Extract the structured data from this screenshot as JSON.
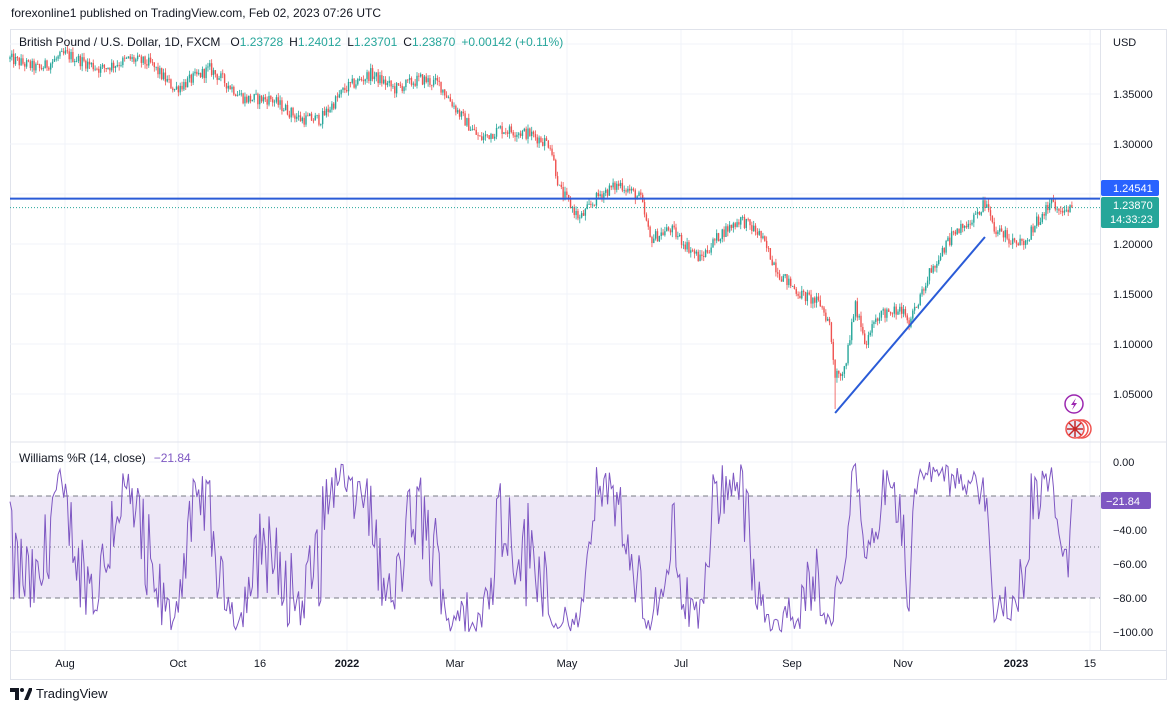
{
  "header": {
    "published": "forexonline1 published on TradingView.com, Feb 02, 2023 07:26 UTC"
  },
  "legend": {
    "symbol": "British Pound / U.S. Dollar, 1D, FXCM",
    "o_label": "O",
    "o": "1.23728",
    "h_label": "H",
    "h": "1.24012",
    "l_label": "L",
    "l": "1.23701",
    "c_label": "C",
    "c": "1.23870",
    "change": "+0.00142 (+0.11%)"
  },
  "indicator": {
    "title": "Williams %R (14, close)",
    "value": "−21.84"
  },
  "price_axis": {
    "currency": "USD",
    "ticks": [
      "1.35000",
      "1.30000",
      "1.20000",
      "1.15000",
      "1.10000",
      "1.05000"
    ],
    "line_label": "1.24541",
    "last_price": "1.23870",
    "countdown": "14:33:23"
  },
  "wr_axis": {
    "ticks": [
      "0.00",
      "−40.00",
      "−60.00",
      "−80.00",
      "−100.00"
    ],
    "last": "−21.84"
  },
  "time_axis": [
    "Aug",
    "Oct",
    "16",
    "2022",
    "Mar",
    "May",
    "Jul",
    "Sep",
    "Nov",
    "2023",
    "15"
  ],
  "footer": {
    "brand": "TradingView"
  },
  "colors": {
    "up": "#26a69a",
    "down": "#ef5350",
    "line": "#2a5bd7",
    "wr": "#7e57c2",
    "band": "#ede7f6"
  },
  "chart_data": {
    "type": "candlestick",
    "title": "British Pound / U.S. Dollar, 1D, FXCM",
    "ylim": [
      1.01,
      1.415
    ],
    "close_path": [
      [
        "2021-07-02",
        1.385
      ],
      [
        "2021-07-18",
        1.375
      ],
      [
        "2021-08-01",
        1.39
      ],
      [
        "2021-08-20",
        1.375
      ],
      [
        "2021-09-05",
        1.385
      ],
      [
        "2021-09-16",
        1.38
      ],
      [
        "2021-09-29",
        1.355
      ],
      [
        "2021-10-18",
        1.375
      ],
      [
        "2021-11-06",
        1.345
      ],
      [
        "2021-11-20",
        1.345
      ],
      [
        "2021-12-06",
        1.325
      ],
      [
        "2021-12-17",
        1.325
      ],
      [
        "2021-12-30",
        1.355
      ],
      [
        "2022-01-13",
        1.37
      ],
      [
        "2022-01-26",
        1.355
      ],
      [
        "2022-02-09",
        1.365
      ],
      [
        "2022-02-19",
        1.36
      ],
      [
        "2022-03-02",
        1.33
      ],
      [
        "2022-03-13",
        1.305
      ],
      [
        "2022-03-24",
        1.315
      ],
      [
        "2022-04-09",
        1.31
      ],
      [
        "2022-04-20",
        1.3
      ],
      [
        "2022-04-25",
        1.255
      ],
      [
        "2022-05-06",
        1.225
      ],
      [
        "2022-05-17",
        1.25
      ],
      [
        "2022-05-28",
        1.26
      ],
      [
        "2022-06-08",
        1.245
      ],
      [
        "2022-06-13",
        1.205
      ],
      [
        "2022-06-24",
        1.215
      ],
      [
        "2022-07-10",
        1.185
      ],
      [
        "2022-07-21",
        1.21
      ],
      [
        "2022-08-01",
        1.225
      ],
      [
        "2022-08-11",
        1.21
      ],
      [
        "2022-08-22",
        1.17
      ],
      [
        "2022-09-02",
        1.15
      ],
      [
        "2022-09-13",
        1.14
      ],
      [
        "2022-09-18",
        1.12
      ],
      [
        "2022-09-21",
        1.07
      ],
      [
        "2022-09-26",
        1.075
      ],
      [
        "2022-10-02",
        1.14
      ],
      [
        "2022-10-07",
        1.1
      ],
      [
        "2022-10-15",
        1.13
      ],
      [
        "2022-10-26",
        1.135
      ],
      [
        "2022-10-31",
        1.12
      ],
      [
        "2022-11-11",
        1.17
      ],
      [
        "2022-11-22",
        1.205
      ],
      [
        "2022-12-03",
        1.225
      ],
      [
        "2022-12-11",
        1.24
      ],
      [
        "2022-12-16",
        1.215
      ],
      [
        "2022-12-25",
        1.205
      ],
      [
        "2023-01-02",
        1.2
      ],
      [
        "2023-01-07",
        1.22
      ],
      [
        "2023-01-15",
        1.24
      ],
      [
        "2023-01-21",
        1.235
      ],
      [
        "2023-01-27",
        1.2387
      ]
    ],
    "low_overrides": {
      "2022-09-21": 1.035
    },
    "horizontal_line": 1.24541,
    "trend_line": [
      [
        "2022-09-21",
        1.031
      ],
      [
        "2022-12-11",
        1.207
      ]
    ],
    "indicator": {
      "name": "Williams %R",
      "period": 14,
      "levels": [
        -20,
        -50,
        -80
      ],
      "ylim": [
        -100,
        0
      ],
      "last": -21.84
    }
  }
}
